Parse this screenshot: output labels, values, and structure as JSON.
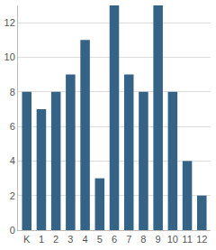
{
  "chart_data": {
    "type": "bar",
    "categories": [
      "K",
      "1",
      "2",
      "3",
      "4",
      "5",
      "6",
      "7",
      "8",
      "9",
      "10",
      "11",
      "12"
    ],
    "values": [
      8,
      7,
      8,
      9,
      11,
      3,
      13,
      9,
      8,
      13,
      8,
      4,
      2
    ],
    "color": "#356386",
    "ylim": [
      0,
      13
    ],
    "yticks": [
      0,
      2,
      4,
      6,
      8,
      10,
      12
    ],
    "grid": true
  }
}
